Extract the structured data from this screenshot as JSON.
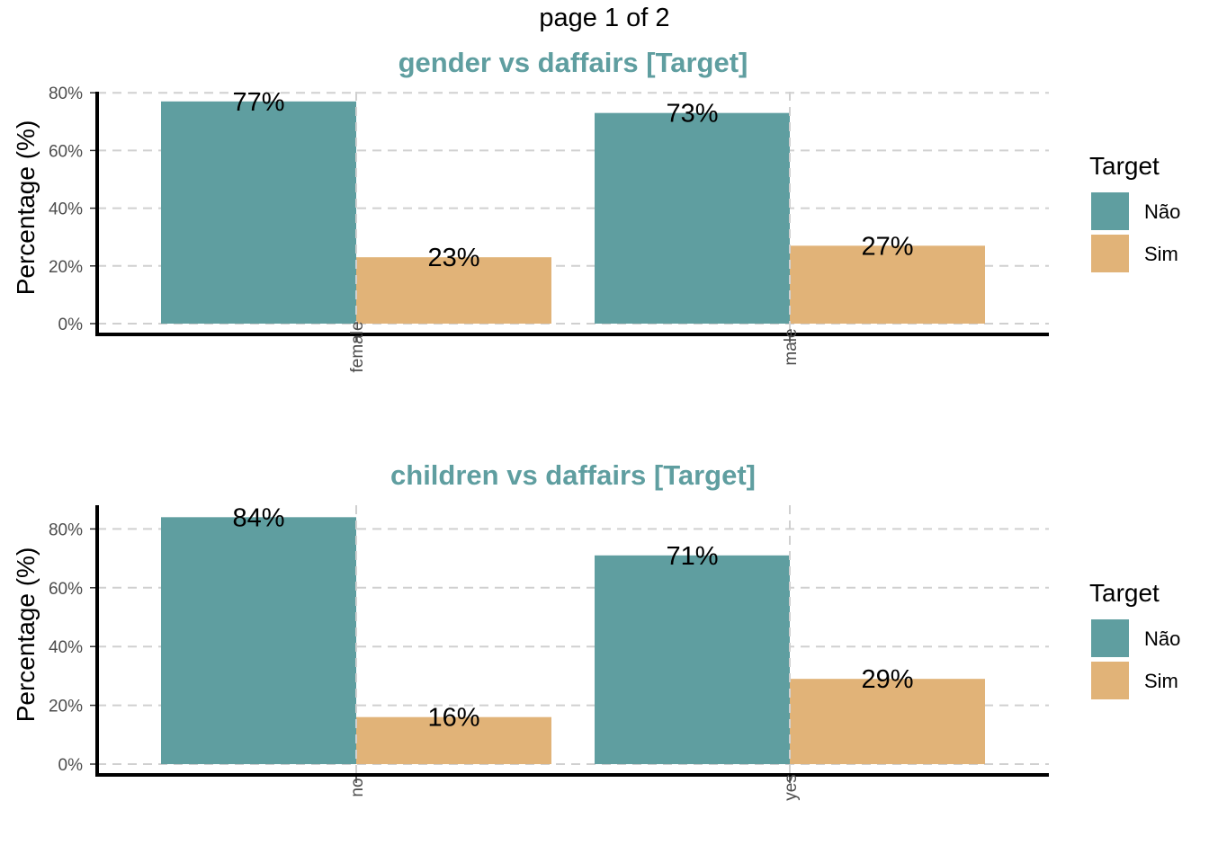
{
  "page_title": "page 1 of 2",
  "colors": {
    "nao": "#5F9EA0",
    "sim": "#E1B378",
    "title": "#5F9EA0",
    "grid": "#d0d0d0",
    "axis": "#000000"
  },
  "chart_data": [
    {
      "type": "bar",
      "title": "gender vs daffairs [Target]",
      "xlabel": "",
      "ylabel": "Percentage (%)",
      "categories": [
        "female",
        "male"
      ],
      "series": [
        {
          "name": "Não",
          "values": [
            77,
            73
          ],
          "labels": [
            "77%",
            "73%"
          ]
        },
        {
          "name": "Sim",
          "values": [
            23,
            27
          ],
          "labels": [
            "23%",
            "27%"
          ]
        }
      ],
      "yticks": [
        "0%",
        "20%",
        "40%",
        "60%",
        "80%"
      ],
      "ylim": [
        0,
        80
      ],
      "legend_title": "Target",
      "legend_position": "right",
      "grid": "dashed"
    },
    {
      "type": "bar",
      "title": "children vs daffairs [Target]",
      "xlabel": "",
      "ylabel": "Percentage (%)",
      "categories": [
        "no",
        "yes"
      ],
      "series": [
        {
          "name": "Não",
          "values": [
            84,
            71
          ],
          "labels": [
            "84%",
            "71%"
          ]
        },
        {
          "name": "Sim",
          "values": [
            16,
            29
          ],
          "labels": [
            "16%",
            "29%"
          ]
        }
      ],
      "yticks": [
        "0%",
        "20%",
        "40%",
        "60%",
        "80%"
      ],
      "ylim": [
        0,
        84
      ],
      "legend_title": "Target",
      "legend_position": "right",
      "grid": "dashed"
    }
  ]
}
